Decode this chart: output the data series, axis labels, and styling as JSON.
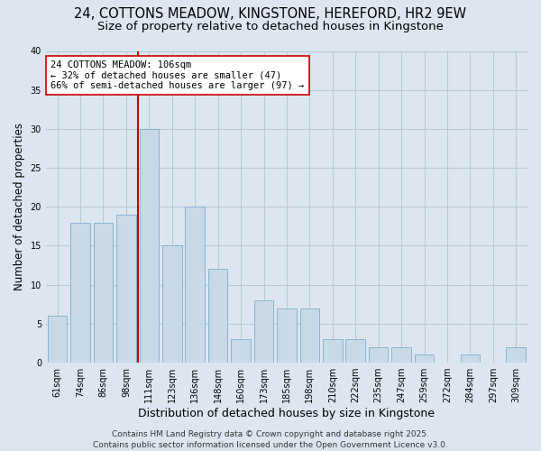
{
  "title_line1": "24, COTTONS MEADOW, KINGSTONE, HEREFORD, HR2 9EW",
  "title_line2": "Size of property relative to detached houses in Kingstone",
  "xlabel": "Distribution of detached houses by size in Kingstone",
  "ylabel": "Number of detached properties",
  "categories": [
    "61sqm",
    "74sqm",
    "86sqm",
    "98sqm",
    "111sqm",
    "123sqm",
    "136sqm",
    "148sqm",
    "160sqm",
    "173sqm",
    "185sqm",
    "198sqm",
    "210sqm",
    "222sqm",
    "235sqm",
    "247sqm",
    "259sqm",
    "272sqm",
    "284sqm",
    "297sqm",
    "309sqm"
  ],
  "values": [
    6,
    18,
    18,
    19,
    30,
    15,
    20,
    12,
    3,
    8,
    7,
    7,
    3,
    3,
    2,
    2,
    1,
    0,
    1,
    0,
    2
  ],
  "bar_color": "#c8d9e8",
  "bar_edge_color": "#7aafc8",
  "grid_color": "#b8c8d8",
  "background_color": "#dde6f0",
  "vline_color": "#cc0000",
  "vline_position": 3.5,
  "annotation_text": "24 COTTONS MEADOW: 106sqm\n← 32% of detached houses are smaller (47)\n66% of semi-detached houses are larger (97) →",
  "annotation_box_facecolor": "#ffffff",
  "annotation_box_edgecolor": "#cc0000",
  "ylim": [
    0,
    40
  ],
  "yticks": [
    0,
    5,
    10,
    15,
    20,
    25,
    30,
    35,
    40
  ],
  "footer_text": "Contains HM Land Registry data © Crown copyright and database right 2025.\nContains public sector information licensed under the Open Government Licence v3.0.",
  "title_fontsize": 10.5,
  "subtitle_fontsize": 9.5,
  "xlabel_fontsize": 9,
  "ylabel_fontsize": 8.5,
  "tick_fontsize": 7,
  "annotation_fontsize": 7.5,
  "footer_fontsize": 6.5
}
